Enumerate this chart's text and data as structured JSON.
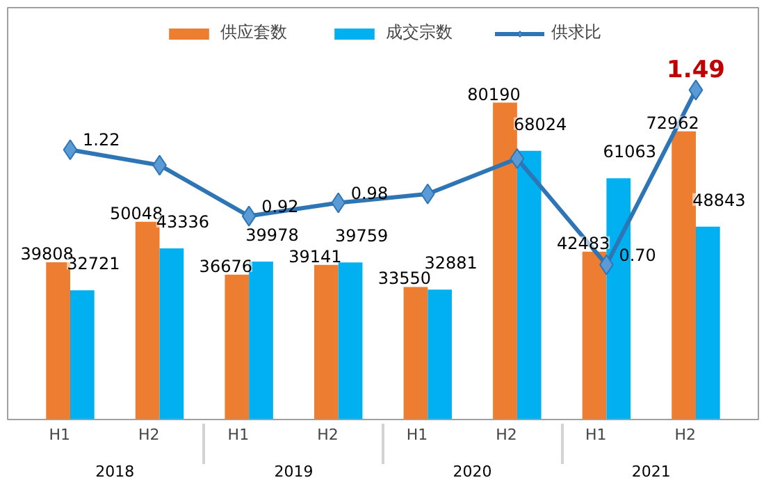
{
  "chart_data": {
    "type": "bar",
    "categories": [
      "H1",
      "H2",
      "H1",
      "H2",
      "H1",
      "H2",
      "H1",
      "H2"
    ],
    "annotations": [
      "2018",
      "2019",
      "2020",
      "2021"
    ],
    "series": [
      {
        "name": "供应套数",
        "color": "#ed7d31",
        "values": [
          39808,
          50048,
          36676,
          39141,
          33550,
          80190,
          42483,
          72962
        ]
      },
      {
        "name": "成交宗数",
        "color": "#00b0f0",
        "values": [
          32721,
          43336,
          39978,
          39759,
          32881,
          68024,
          61063,
          48843
        ]
      },
      {
        "name": "供求比",
        "type": "line",
        "axis": "y2",
        "color": "#2e75b6",
        "marker": "diamond",
        "values": [
          1.22,
          1.15,
          0.92,
          0.98,
          1.02,
          1.18,
          0.7,
          1.49
        ],
        "value_labels": [
          "1.22",
          null,
          "0.92",
          "0.98",
          null,
          null,
          "0.70",
          "1.49"
        ]
      }
    ],
    "data_labels": true,
    "tick_labels": "x",
    "legend": "top",
    "grid": false
  }
}
